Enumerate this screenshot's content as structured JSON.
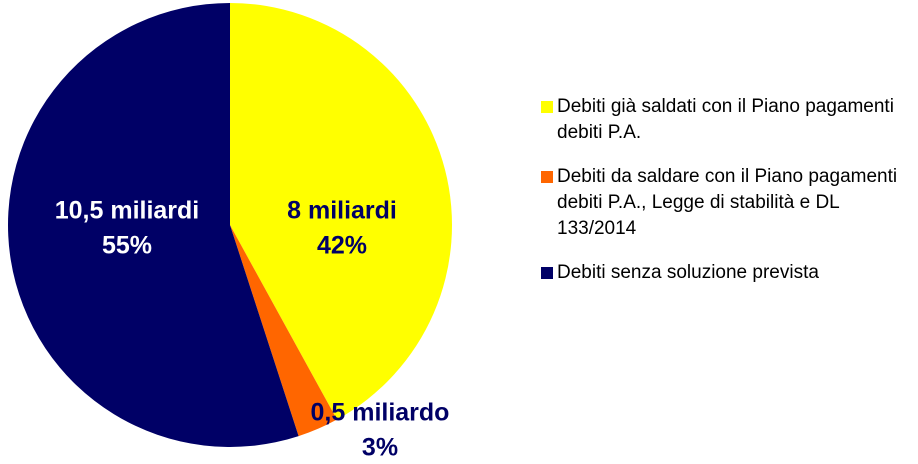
{
  "chart_data": {
    "type": "pie",
    "categories": [
      "Debiti già saldati con il Piano pagamenti debiti P.A.",
      "Debiti da saldare con il Piano pagamenti debiti P.A., Legge di stabilità e DL 133/2014",
      "Debiti senza soluzione prevista"
    ],
    "values": [
      42,
      3,
      55
    ],
    "value_labels": [
      "42%",
      "3%",
      "55%"
    ],
    "amount_labels": [
      "8 miliardi",
      "0,5 miliardo",
      "10,5 miliardi"
    ],
    "colors": [
      "#ffff00",
      "#ff6600",
      "#000066"
    ],
    "legend": "right"
  }
}
